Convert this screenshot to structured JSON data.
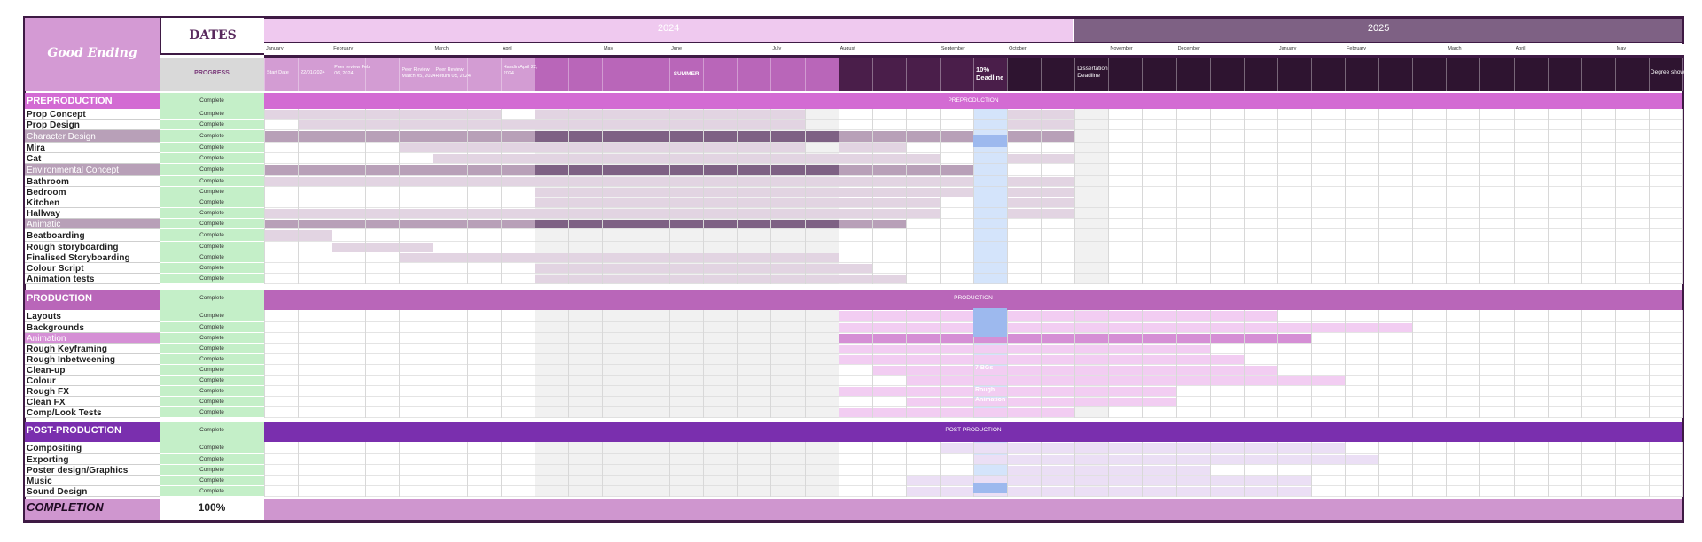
{
  "project": {
    "title": "Good Ending",
    "dates_header": "DATES",
    "progress_header": "PROGRESS",
    "completion_label": "COMPLETION",
    "completion_value": "100%"
  },
  "years": [
    {
      "label": "2024",
      "color": "#efc9ef"
    },
    {
      "label": "2025",
      "color": "#7e6184"
    }
  ],
  "months": [
    "January",
    "February",
    "March",
    "April",
    "May",
    "June",
    "July",
    "August",
    "September",
    "October",
    "November",
    "December",
    "January",
    "February",
    "March",
    "April",
    "May"
  ],
  "milestones": {
    "start": "Start Date",
    "start_date": "22/01/2024",
    "peer_feb": "Peer review Feb 06, 2024",
    "peer_march": "Peer Review March 05, 2024",
    "peer_return": "Peer Review Return 05, 2024",
    "handin": "Handin April 22, 2024",
    "summer": "SUMMER",
    "deadline_10": "10% Deadline",
    "dissertation": "Dissertation Deadline",
    "degree_show": "Degree show"
  },
  "sections": [
    {
      "name": "PREPRODUCTION",
      "banner": "PREPRODUCTION",
      "progress": "Complete",
      "color": "#d36bd3",
      "shade": "#b8a0b8",
      "shade_dark": "#7e6184",
      "tint": "#e2d4e2",
      "tasks": [
        {
          "label": "Prop Concept",
          "progress": "Complete",
          "kind": "task",
          "bars": [
            [
              0,
              7,
              "t"
            ],
            [
              8,
              16,
              "t"
            ],
            [
              22,
              24,
              "t"
            ]
          ]
        },
        {
          "label": "Prop Design",
          "progress": "Complete",
          "kind": "task",
          "bars": [
            [
              1,
              8,
              "t"
            ],
            [
              8,
              16,
              "t"
            ],
            [
              22,
              24,
              "t"
            ]
          ]
        },
        {
          "label": "Character Design",
          "progress": "Complete",
          "kind": "sub",
          "bars": [
            [
              0,
              8,
              "s"
            ],
            [
              8,
              17,
              "d"
            ],
            [
              17,
              21,
              "s"
            ],
            [
              22,
              24,
              "s"
            ]
          ]
        },
        {
          "label": "Mira",
          "progress": "Complete",
          "kind": "task",
          "bars": [
            [
              4,
              8,
              "t"
            ],
            [
              8,
              16,
              "t"
            ],
            [
              17,
              19,
              "t"
            ]
          ]
        },
        {
          "label": "Cat",
          "progress": "Complete",
          "kind": "task",
          "bars": [
            [
              5,
              8,
              "t"
            ],
            [
              8,
              17,
              "t"
            ],
            [
              17,
              20,
              "t"
            ],
            [
              22,
              24,
              "t"
            ]
          ]
        },
        {
          "label": "Environmental Concept",
          "progress": "Complete",
          "kind": "sub",
          "bars": [
            [
              0,
              8,
              "s"
            ],
            [
              8,
              17,
              "d"
            ],
            [
              17,
              21,
              "s"
            ]
          ]
        },
        {
          "label": "Bathroom",
          "progress": "Complete",
          "kind": "task",
          "bars": [
            [
              0,
              8,
              "t"
            ],
            [
              8,
              17,
              "t"
            ],
            [
              17,
              21,
              "t"
            ],
            [
              22,
              24,
              "t"
            ]
          ]
        },
        {
          "label": "Bedroom",
          "progress": "Complete",
          "kind": "task",
          "bars": [
            [
              8,
              17,
              "t"
            ],
            [
              17,
              21,
              "t"
            ],
            [
              22,
              24,
              "t"
            ]
          ]
        },
        {
          "label": "Kitchen",
          "progress": "Complete",
          "kind": "task",
          "bars": [
            [
              8,
              17,
              "t"
            ],
            [
              17,
              20,
              "t"
            ],
            [
              22,
              24,
              "t"
            ]
          ]
        },
        {
          "label": "Hallway",
          "progress": "Complete",
          "kind": "task",
          "bars": [
            [
              0,
              8,
              "t"
            ],
            [
              8,
              17,
              "t"
            ],
            [
              17,
              20,
              "t"
            ],
            [
              22,
              24,
              "t"
            ]
          ]
        },
        {
          "label": "Animatic",
          "progress": "Complete",
          "kind": "sub",
          "bars": [
            [
              0,
              8,
              "s"
            ],
            [
              8,
              17,
              "d"
            ],
            [
              17,
              19,
              "s"
            ]
          ]
        },
        {
          "label": "Beatboarding",
          "progress": "Complete",
          "kind": "task",
          "bars": [
            [
              0,
              2,
              "t"
            ]
          ]
        },
        {
          "label": "Rough storyboarding",
          "progress": "Complete",
          "kind": "task",
          "bars": [
            [
              2,
              5,
              "t"
            ]
          ]
        },
        {
          "label": "Finalised Storyboarding",
          "progress": "Complete",
          "kind": "task",
          "bars": [
            [
              4,
              8,
              "t"
            ],
            [
              8,
              17,
              "t"
            ]
          ]
        },
        {
          "label": "Colour Script",
          "progress": "Complete",
          "kind": "task",
          "bars": [
            [
              8,
              17,
              "t"
            ],
            [
              17,
              18,
              "t"
            ]
          ]
        },
        {
          "label": "Animation tests",
          "progress": "Complete",
          "kind": "task",
          "bars": [
            [
              8,
              17,
              "t"
            ],
            [
              17,
              19,
              "t"
            ]
          ]
        }
      ]
    },
    {
      "name": "PRODUCTION",
      "banner": "PRODUCTION",
      "progress": "Complete",
      "color": "#b966b9",
      "shade": "#d58fd5",
      "shade_dark": "#cc5fcc",
      "tint": "#f2cdf2",
      "tasks": [
        {
          "label": "Layouts",
          "progress": "Complete",
          "kind": "task",
          "bars": [
            [
              17,
              30,
              "t"
            ]
          ]
        },
        {
          "label": "Backgrounds",
          "progress": "Complete",
          "kind": "task",
          "bars": [
            [
              17,
              34,
              "t"
            ]
          ]
        },
        {
          "label": "Animation",
          "progress": "Complete",
          "kind": "sub",
          "bars": [
            [
              17,
              31,
              "s"
            ]
          ]
        },
        {
          "label": "Rough Keyframing",
          "progress": "Complete",
          "kind": "task",
          "bars": [
            [
              17,
              28,
              "t"
            ]
          ]
        },
        {
          "label": "Rough Inbetweening",
          "progress": "Complete",
          "kind": "task",
          "bars": [
            [
              17,
              29,
              "t"
            ]
          ]
        },
        {
          "label": "Clean-up",
          "progress": "Complete",
          "kind": "task",
          "bars": [
            [
              18,
              30,
              "t"
            ]
          ]
        },
        {
          "label": "Colour",
          "progress": "Complete",
          "kind": "task",
          "bars": [
            [
              19,
              32,
              "t"
            ]
          ]
        },
        {
          "label": "Rough FX",
          "progress": "Complete",
          "kind": "task",
          "bars": [
            [
              17,
              27,
              "t"
            ]
          ]
        },
        {
          "label": "Clean FX",
          "progress": "Complete",
          "kind": "task",
          "bars": [
            [
              19,
              27,
              "t"
            ]
          ]
        },
        {
          "label": "Comp/Look Tests",
          "progress": "Complete",
          "kind": "task",
          "bars": [
            [
              17,
              24,
              "t"
            ]
          ]
        }
      ],
      "notes": [
        "7 BGs",
        "Rough",
        "Animation"
      ]
    },
    {
      "name": "POST-PRODUCTION",
      "banner": "POST-PRODUCTION",
      "progress": "Complete",
      "color": "#7a2fae",
      "shade": "#d9c2ee",
      "shade_dark": "#b897dd",
      "tint": "#ebdff5",
      "tasks": [
        {
          "label": "Compositing",
          "progress": "Complete",
          "kind": "task",
          "bars": [
            [
              20,
              32,
              "t"
            ]
          ]
        },
        {
          "label": "Exporting",
          "progress": "Complete",
          "kind": "task",
          "bars": [
            [
              21,
              33,
              "t"
            ]
          ]
        },
        {
          "label": "Poster design/Graphics",
          "progress": "Complete",
          "kind": "task",
          "bars": [
            [
              22,
              28,
              "t"
            ]
          ]
        },
        {
          "label": "Music",
          "progress": "Complete",
          "kind": "task",
          "bars": [
            [
              19,
              31,
              "t"
            ]
          ]
        },
        {
          "label": "Sound Design",
          "progress": "Complete",
          "kind": "task",
          "bars": [
            [
              19,
              31,
              "t"
            ]
          ]
        }
      ]
    }
  ],
  "colors": {
    "frame": "#3e1a44",
    "title_bg": "#d49ad4",
    "progress_bg": "#c4efc8",
    "summer": "#b966b9",
    "deadline": "#d4e4fb",
    "deadline_dark": "#9db9ee",
    "dark_header": "#4a1e4a",
    "darker_header": "#2e1430",
    "footer_bar": "#cf96cf",
    "progress_head_bg": "#d9d9d9",
    "progress_head_text": "#7a3a7a",
    "grid": "#d8d8d8",
    "summer_grid": "#f1f1f1",
    "year_text": "#ffffff"
  }
}
